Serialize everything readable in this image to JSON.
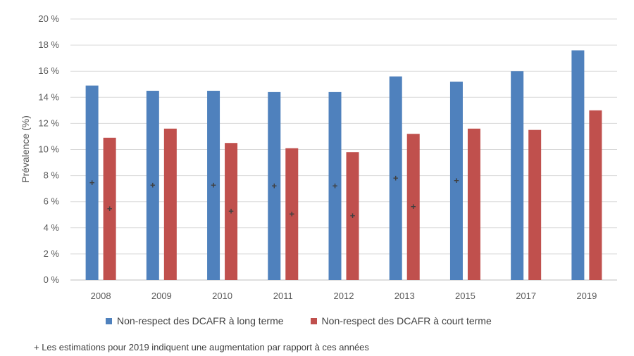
{
  "chart_data": {
    "type": "bar",
    "title": "",
    "xlabel": "",
    "ylabel": "Prévalence (%)",
    "ylim": [
      0,
      20
    ],
    "yticks": [
      0,
      2,
      4,
      6,
      8,
      10,
      12,
      14,
      16,
      18,
      20
    ],
    "ytick_labels": [
      "0 %",
      "2 %",
      "4 %",
      "6 %",
      "8 %",
      "10 %",
      "12 %",
      "14 %",
      "16 %",
      "18 %",
      "20 %"
    ],
    "grid": true,
    "legend_position": "bottom",
    "categories": [
      "2008",
      "2009",
      "2010",
      "2011",
      "2012",
      "2013",
      "2015",
      "2017",
      "2019"
    ],
    "series": [
      {
        "name": "Non-respect des DCAFR à long terme",
        "color": "#4F81BD",
        "values": [
          14.9,
          14.5,
          14.5,
          14.4,
          14.4,
          15.6,
          15.2,
          16.0,
          17.6
        ],
        "marked": [
          true,
          true,
          true,
          true,
          true,
          true,
          true,
          false,
          false
        ]
      },
      {
        "name": "Non-respect des DCAFR à court terme",
        "color": "#C0504D",
        "values": [
          10.9,
          11.6,
          10.5,
          10.1,
          9.8,
          11.2,
          11.6,
          11.5,
          13.0
        ],
        "marked": [
          true,
          false,
          true,
          true,
          true,
          true,
          false,
          false,
          false
        ]
      }
    ],
    "marker_symbol": "+",
    "footnote": "+ Les estimations pour 2019 indiquent une augmentation par rapport à ces années"
  }
}
